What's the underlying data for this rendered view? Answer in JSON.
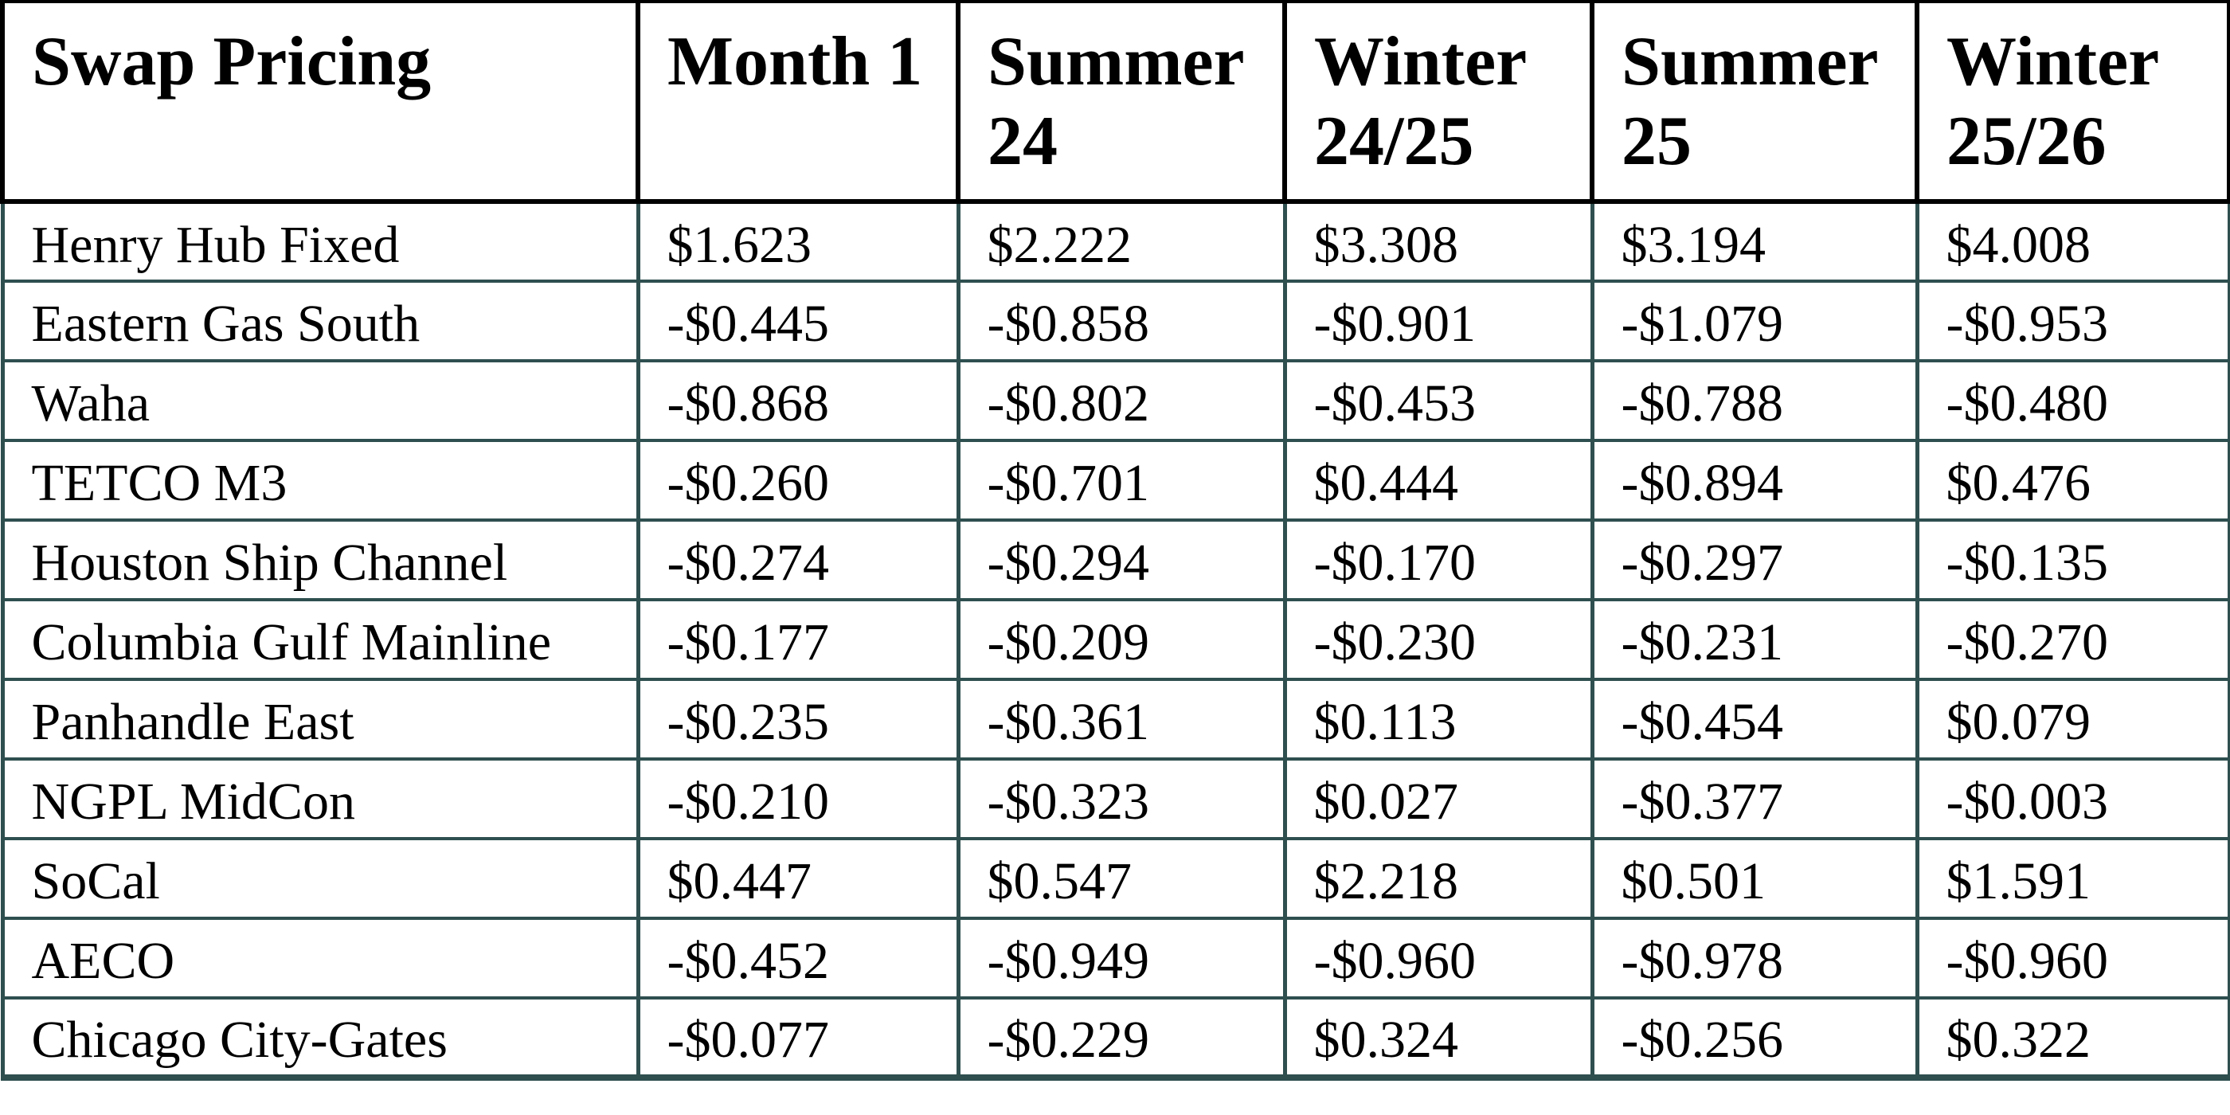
{
  "document": {
    "title": "Swap Pricing"
  },
  "colors": {
    "background": "#FFFFFF",
    "text": "#000000",
    "header_border": "#000000",
    "body_border": "#2F4F4F"
  },
  "table": {
    "columns": [
      "Swap Pricing",
      "Month 1",
      "Summer 24",
      "Winter 24/25",
      "Summer 25",
      "Winter 25/26"
    ],
    "rows": [
      {
        "label": "Henry Hub Fixed",
        "values": [
          "$1.623",
          "$2.222",
          "$3.308",
          "$3.194",
          "$4.008"
        ]
      },
      {
        "label": "Eastern Gas South",
        "values": [
          "-$0.445",
          "-$0.858",
          "-$0.901",
          "-$1.079",
          "-$0.953"
        ]
      },
      {
        "label": "Waha",
        "values": [
          "-$0.868",
          "-$0.802",
          "-$0.453",
          "-$0.788",
          "-$0.480"
        ]
      },
      {
        "label": "TETCO M3",
        "values": [
          "-$0.260",
          "-$0.701",
          "$0.444",
          "-$0.894",
          "$0.476"
        ]
      },
      {
        "label": "Houston Ship Channel",
        "values": [
          "-$0.274",
          "-$0.294",
          "-$0.170",
          "-$0.297",
          "-$0.135"
        ]
      },
      {
        "label": "Columbia Gulf Mainline",
        "values": [
          "-$0.177",
          "-$0.209",
          "-$0.230",
          "-$0.231",
          "-$0.270"
        ]
      },
      {
        "label": "Panhandle East",
        "values": [
          "-$0.235",
          "-$0.361",
          "$0.113",
          "-$0.454",
          "$0.079"
        ]
      },
      {
        "label": "NGPL MidCon",
        "values": [
          "-$0.210",
          "-$0.323",
          "$0.027",
          "-$0.377",
          "-$0.003"
        ]
      },
      {
        "label": "SoCal",
        "values": [
          "$0.447",
          "$0.547",
          "$2.218",
          "$0.501",
          "$1.591"
        ]
      },
      {
        "label": "AECO",
        "values": [
          "-$0.452",
          "-$0.949",
          "-$0.960",
          "-$0.978",
          "-$0.960"
        ]
      },
      {
        "label": "Chicago City-Gates",
        "values": [
          "-$0.077",
          "-$0.229",
          "$0.324",
          "-$0.256",
          "$0.322"
        ]
      }
    ]
  },
  "chart_data": {
    "type": "table",
    "title": "Swap Pricing",
    "categories": [
      "Month 1",
      "Summer 24",
      "Winter 24/25",
      "Summer 25",
      "Winter 25/26"
    ],
    "series": [
      {
        "name": "Henry Hub Fixed",
        "values": [
          1.623,
          2.222,
          3.308,
          3.194,
          4.008
        ]
      },
      {
        "name": "Eastern Gas South",
        "values": [
          -0.445,
          -0.858,
          -0.901,
          -1.079,
          -0.953
        ]
      },
      {
        "name": "Waha",
        "values": [
          -0.868,
          -0.802,
          -0.453,
          -0.788,
          -0.48
        ]
      },
      {
        "name": "TETCO M3",
        "values": [
          -0.26,
          -0.701,
          0.444,
          -0.894,
          0.476
        ]
      },
      {
        "name": "Houston Ship Channel",
        "values": [
          -0.274,
          -0.294,
          -0.17,
          -0.297,
          -0.135
        ]
      },
      {
        "name": "Columbia Gulf Mainline",
        "values": [
          -0.177,
          -0.209,
          -0.23,
          -0.231,
          -0.27
        ]
      },
      {
        "name": "Panhandle East",
        "values": [
          -0.235,
          -0.361,
          0.113,
          -0.454,
          0.079
        ]
      },
      {
        "name": "NGPL MidCon",
        "values": [
          -0.21,
          -0.323,
          0.027,
          -0.377,
          -0.003
        ]
      },
      {
        "name": "SoCal",
        "values": [
          0.447,
          0.547,
          2.218,
          0.501,
          1.591
        ]
      },
      {
        "name": "AECO",
        "values": [
          -0.452,
          -0.949,
          -0.96,
          -0.978,
          -0.96
        ]
      },
      {
        "name": "Chicago City-Gates",
        "values": [
          -0.077,
          -0.229,
          0.324,
          -0.256,
          0.322
        ]
      }
    ]
  }
}
